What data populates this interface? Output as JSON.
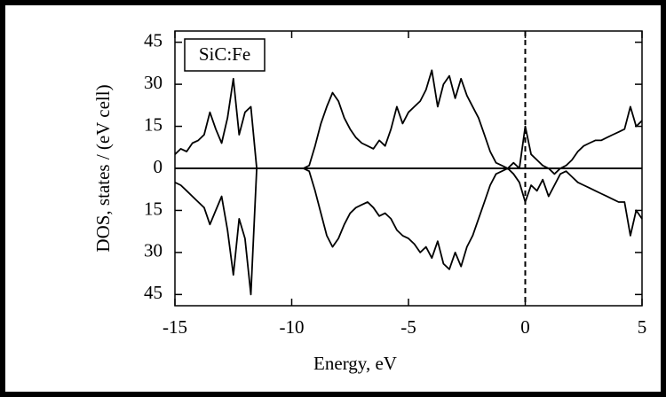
{
  "chart_data": {
    "type": "line",
    "xlabel": "Energy, eV",
    "ylabel": "DOS, states / (eV cell)",
    "annotation": "SiC:Fe",
    "x": [
      -15,
      -14.75,
      -14.5,
      -14.25,
      -14,
      -13.75,
      -13.5,
      -13.25,
      -13,
      -12.75,
      -12.5,
      -12.25,
      -12,
      -11.75,
      -11.5,
      -11.25,
      -11,
      -10.75,
      -10.5,
      -10.25,
      -10,
      -9.75,
      -9.5,
      -9.25,
      -9,
      -8.75,
      -8.5,
      -8.25,
      -8,
      -7.75,
      -7.5,
      -7.25,
      -7,
      -6.75,
      -6.5,
      -6.25,
      -6,
      -5.75,
      -5.5,
      -5.25,
      -5,
      -4.75,
      -4.5,
      -4.25,
      -4,
      -3.75,
      -3.5,
      -3.25,
      -3,
      -2.75,
      -2.5,
      -2.25,
      -2,
      -1.75,
      -1.5,
      -1.25,
      -1,
      -0.75,
      -0.5,
      -0.25,
      0,
      0.25,
      0.5,
      0.75,
      1,
      1.25,
      1.5,
      1.75,
      2,
      2.25,
      2.5,
      2.75,
      3,
      3.25,
      3.5,
      3.75,
      4,
      4.25,
      4.5,
      4.75,
      5
    ],
    "series": [
      {
        "color": "#000000",
        "values": [
          5,
          7,
          6,
          9,
          10,
          12,
          20,
          14,
          9,
          18,
          32,
          12,
          20,
          22,
          0,
          0,
          0,
          0,
          0,
          0,
          0,
          0,
          0,
          1,
          8,
          16,
          22,
          27,
          24,
          18,
          14,
          11,
          9,
          8,
          7,
          10,
          8,
          14,
          22,
          16,
          20,
          22,
          24,
          28,
          35,
          22,
          30,
          33,
          25,
          32,
          26,
          22,
          18,
          12,
          6,
          2,
          1,
          0,
          2,
          0,
          15,
          5,
          3,
          1,
          0,
          -2,
          0,
          1,
          3,
          6,
          8,
          9,
          10,
          10,
          11,
          12,
          13,
          14,
          22,
          15,
          17
        ]
      },
      {
        "color": "#000000",
        "values": [
          -5,
          -6,
          -8,
          -10,
          -12,
          -14,
          -20,
          -15,
          -10,
          -22,
          -38,
          -18,
          -25,
          -45,
          0,
          0,
          0,
          0,
          0,
          0,
          0,
          0,
          0,
          -1,
          -8,
          -16,
          -24,
          -28,
          -25,
          -20,
          -16,
          -14,
          -13,
          -12,
          -14,
          -17,
          -16,
          -18,
          -22,
          -24,
          -25,
          -27,
          -30,
          -28,
          -32,
          -26,
          -34,
          -36,
          -30,
          -35,
          -28,
          -24,
          -18,
          -12,
          -6,
          -2,
          -1,
          0,
          -2,
          -5,
          -12,
          -6,
          -8,
          -4,
          -10,
          -6,
          -2,
          -1,
          -3,
          -5,
          -6,
          -7,
          -8,
          -9,
          -10,
          -11,
          -12,
          -12,
          -24,
          -15,
          -18
        ]
      }
    ],
    "xlim": [
      -15,
      5
    ],
    "xticks": [
      -15,
      -10,
      -5,
      0,
      5
    ],
    "ylim": [
      -49,
      49
    ],
    "yticks": [
      {
        "value": -45,
        "label": "45"
      },
      {
        "value": -30,
        "label": "30"
      },
      {
        "value": -15,
        "label": "15"
      },
      0,
      15,
      30,
      45
    ]
  }
}
